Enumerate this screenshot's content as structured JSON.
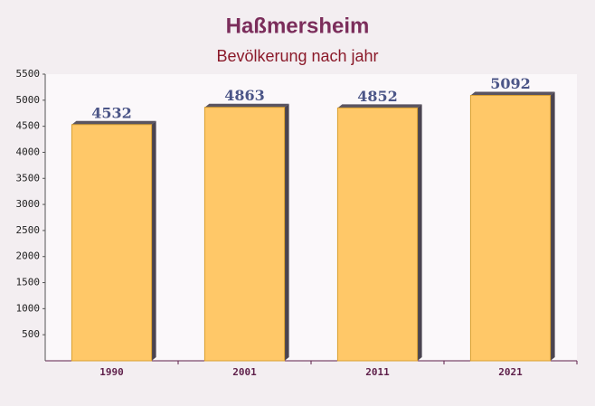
{
  "chart_data": {
    "type": "bar",
    "title": "Haßmersheim",
    "subtitle": "Bevölkerung nach jahr",
    "categories": [
      "1990",
      "2001",
      "2011",
      "2021"
    ],
    "values": [
      4532,
      4863,
      4852,
      5092
    ],
    "color": "#ffc04d",
    "ylim": [
      0,
      5500
    ],
    "yticks": [
      500,
      1000,
      1500,
      2000,
      2500,
      3000,
      3500,
      4000,
      4500,
      5000,
      5500
    ]
  }
}
